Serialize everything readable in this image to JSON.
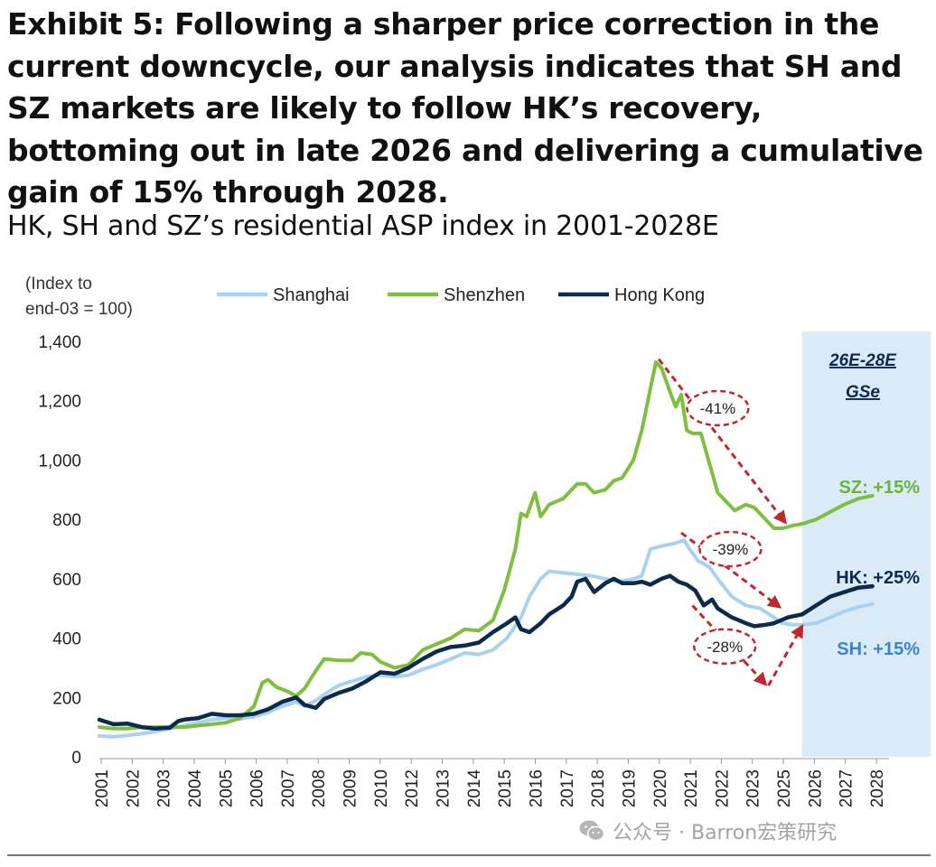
{
  "title": "Exhibit 5: Following a sharper price correction in the current downcycle, our analysis indicates that SH and SZ markets are likely to follow HK’s recovery, bottoming out in late 2026 and delivering a cumulative gain of 15% through 2028.",
  "subtitle": "HK, SH and SZ’s residential ASP index in 2001-2028E",
  "watermark": "公众号 · Barron宏策研究",
  "watermark_icon": "wechat-icon",
  "colors": {
    "shanghai": "#a9d2f0",
    "shenzhen": "#7fbf3f",
    "hongkong": "#0c2a4a",
    "forecast_band": "#dbeaf7",
    "annotation": "#c0282d",
    "sz_label": "#6ab23a",
    "sh_label": "#3a86cc"
  },
  "chart_data": {
    "type": "line",
    "ylabel": "(Index to end-03 = 100)",
    "ylim": [
      0,
      1400
    ],
    "yticks": [
      "0",
      "200",
      "400",
      "600",
      "800",
      "1,000",
      "1,200",
      "1,400"
    ],
    "xlim": [
      2001,
      2028.9
    ],
    "xtick_labels": [
      "2001",
      "2002",
      "2003",
      "2004",
      "2005",
      "2006",
      "2007",
      "2008",
      "2009",
      "2010",
      "2012",
      "2013",
      "2014",
      "2015",
      "2016",
      "2017",
      "2018",
      "2019",
      "2020",
      "2021",
      "2022",
      "2023",
      "2025",
      "2026",
      "2027",
      "2028"
    ],
    "grid": false,
    "legend_position": "top",
    "forecast_band": {
      "from": 2026.0,
      "to": 2029.3,
      "label_line1": "26E-28E",
      "label_line2": "GSe"
    },
    "series": [
      {
        "name": "Shanghai",
        "points": [
          [
            2001.0,
            70
          ],
          [
            2001.5,
            68
          ],
          [
            2002.0,
            72
          ],
          [
            2002.5,
            78
          ],
          [
            2003.0,
            85
          ],
          [
            2003.5,
            95
          ],
          [
            2004.0,
            105
          ],
          [
            2004.5,
            115
          ],
          [
            2005.0,
            125
          ],
          [
            2005.5,
            130
          ],
          [
            2006.0,
            128
          ],
          [
            2006.5,
            135
          ],
          [
            2007.0,
            150
          ],
          [
            2007.5,
            170
          ],
          [
            2008.0,
            185
          ],
          [
            2008.3,
            170
          ],
          [
            2008.7,
            190
          ],
          [
            2009.0,
            210
          ],
          [
            2009.5,
            240
          ],
          [
            2010.0,
            255
          ],
          [
            2010.5,
            270
          ],
          [
            2011.0,
            275
          ],
          [
            2011.5,
            270
          ],
          [
            2012.0,
            275
          ],
          [
            2012.5,
            295
          ],
          [
            2013.0,
            310
          ],
          [
            2013.5,
            330
          ],
          [
            2014.0,
            350
          ],
          [
            2014.5,
            345
          ],
          [
            2015.0,
            360
          ],
          [
            2015.5,
            400
          ],
          [
            2016.0,
            470
          ],
          [
            2016.3,
            540
          ],
          [
            2016.7,
            600
          ],
          [
            2017.0,
            625
          ],
          [
            2017.5,
            620
          ],
          [
            2018.0,
            615
          ],
          [
            2018.5,
            610
          ],
          [
            2019.0,
            600
          ],
          [
            2019.5,
            590
          ],
          [
            2020.0,
            600
          ],
          [
            2020.3,
            610
          ],
          [
            2020.6,
            700
          ],
          [
            2021.0,
            710
          ],
          [
            2021.5,
            720
          ],
          [
            2021.8,
            730
          ],
          [
            2022.0,
            700
          ],
          [
            2022.3,
            660
          ],
          [
            2022.7,
            640
          ],
          [
            2023.0,
            600
          ],
          [
            2023.5,
            540
          ],
          [
            2024.0,
            510
          ],
          [
            2024.5,
            500
          ],
          [
            2025.0,
            470
          ],
          [
            2025.3,
            450
          ],
          [
            2025.7,
            445
          ],
          [
            2026.0,
            445
          ],
          [
            2026.5,
            450
          ],
          [
            2027.0,
            470
          ],
          [
            2027.5,
            490
          ],
          [
            2028.0,
            505
          ],
          [
            2028.5,
            515
          ]
        ]
      },
      {
        "name": "Shenzhen",
        "points": [
          [
            2001.0,
            100
          ],
          [
            2001.5,
            95
          ],
          [
            2002.0,
            95
          ],
          [
            2002.5,
            100
          ],
          [
            2003.0,
            100
          ],
          [
            2003.5,
            100
          ],
          [
            2004.0,
            100
          ],
          [
            2004.5,
            105
          ],
          [
            2005.0,
            110
          ],
          [
            2005.5,
            115
          ],
          [
            2006.0,
            130
          ],
          [
            2006.5,
            170
          ],
          [
            2006.8,
            250
          ],
          [
            2007.0,
            260
          ],
          [
            2007.3,
            235
          ],
          [
            2007.7,
            220
          ],
          [
            2008.0,
            205
          ],
          [
            2008.3,
            230
          ],
          [
            2008.7,
            290
          ],
          [
            2009.0,
            330
          ],
          [
            2009.5,
            325
          ],
          [
            2010.0,
            325
          ],
          [
            2010.3,
            350
          ],
          [
            2010.7,
            345
          ],
          [
            2011.0,
            320
          ],
          [
            2011.5,
            300
          ],
          [
            2012.0,
            310
          ],
          [
            2012.5,
            360
          ],
          [
            2013.0,
            380
          ],
          [
            2013.5,
            400
          ],
          [
            2014.0,
            430
          ],
          [
            2014.5,
            425
          ],
          [
            2015.0,
            460
          ],
          [
            2015.4,
            560
          ],
          [
            2015.8,
            700
          ],
          [
            2016.0,
            820
          ],
          [
            2016.2,
            810
          ],
          [
            2016.5,
            890
          ],
          [
            2016.7,
            810
          ],
          [
            2017.0,
            850
          ],
          [
            2017.5,
            870
          ],
          [
            2017.8,
            900
          ],
          [
            2018.0,
            920
          ],
          [
            2018.3,
            920
          ],
          [
            2018.6,
            890
          ],
          [
            2019.0,
            900
          ],
          [
            2019.3,
            930
          ],
          [
            2019.6,
            940
          ],
          [
            2020.0,
            1000
          ],
          [
            2020.3,
            1100
          ],
          [
            2020.6,
            1240
          ],
          [
            2020.8,
            1330
          ],
          [
            2021.0,
            1310
          ],
          [
            2021.3,
            1230
          ],
          [
            2021.5,
            1180
          ],
          [
            2021.7,
            1220
          ],
          [
            2021.9,
            1100
          ],
          [
            2022.1,
            1090
          ],
          [
            2022.4,
            1090
          ],
          [
            2022.7,
            990
          ],
          [
            2023.0,
            890
          ],
          [
            2023.3,
            860
          ],
          [
            2023.6,
            830
          ],
          [
            2024.0,
            850
          ],
          [
            2024.3,
            840
          ],
          [
            2024.7,
            800
          ],
          [
            2025.0,
            770
          ],
          [
            2025.3,
            770
          ],
          [
            2025.7,
            780
          ],
          [
            2026.0,
            785
          ],
          [
            2026.5,
            800
          ],
          [
            2027.0,
            825
          ],
          [
            2027.5,
            850
          ],
          [
            2028.0,
            870
          ],
          [
            2028.5,
            880
          ]
        ]
      },
      {
        "name": "Hong Kong",
        "points": [
          [
            2001.0,
            125
          ],
          [
            2001.5,
            110
          ],
          [
            2002.0,
            112
          ],
          [
            2002.5,
            100
          ],
          [
            2003.0,
            95
          ],
          [
            2003.5,
            98
          ],
          [
            2003.8,
            120
          ],
          [
            2004.0,
            125
          ],
          [
            2004.5,
            130
          ],
          [
            2005.0,
            145
          ],
          [
            2005.5,
            140
          ],
          [
            2006.0,
            140
          ],
          [
            2006.5,
            145
          ],
          [
            2007.0,
            160
          ],
          [
            2007.5,
            185
          ],
          [
            2008.0,
            200
          ],
          [
            2008.3,
            175
          ],
          [
            2008.7,
            165
          ],
          [
            2009.0,
            195
          ],
          [
            2009.5,
            215
          ],
          [
            2010.0,
            230
          ],
          [
            2010.5,
            255
          ],
          [
            2011.0,
            285
          ],
          [
            2011.5,
            280
          ],
          [
            2012.0,
            300
          ],
          [
            2012.5,
            330
          ],
          [
            2013.0,
            355
          ],
          [
            2013.5,
            370
          ],
          [
            2014.0,
            375
          ],
          [
            2014.5,
            385
          ],
          [
            2015.0,
            420
          ],
          [
            2015.5,
            450
          ],
          [
            2015.8,
            470
          ],
          [
            2016.0,
            430
          ],
          [
            2016.3,
            420
          ],
          [
            2016.7,
            450
          ],
          [
            2017.0,
            480
          ],
          [
            2017.5,
            510
          ],
          [
            2017.8,
            540
          ],
          [
            2018.0,
            590
          ],
          [
            2018.3,
            600
          ],
          [
            2018.6,
            555
          ],
          [
            2019.0,
            585
          ],
          [
            2019.3,
            600
          ],
          [
            2019.6,
            585
          ],
          [
            2020.0,
            585
          ],
          [
            2020.3,
            590
          ],
          [
            2020.6,
            580
          ],
          [
            2021.0,
            600
          ],
          [
            2021.3,
            610
          ],
          [
            2021.6,
            590
          ],
          [
            2021.9,
            580
          ],
          [
            2022.2,
            560
          ],
          [
            2022.5,
            510
          ],
          [
            2022.8,
            530
          ],
          [
            2023.0,
            500
          ],
          [
            2023.5,
            470
          ],
          [
            2024.0,
            450
          ],
          [
            2024.3,
            440
          ],
          [
            2024.7,
            445
          ],
          [
            2025.0,
            450
          ],
          [
            2025.5,
            470
          ],
          [
            2026.0,
            480
          ],
          [
            2026.5,
            510
          ],
          [
            2027.0,
            540
          ],
          [
            2027.5,
            555
          ],
          [
            2028.0,
            570
          ],
          [
            2028.5,
            575
          ]
        ]
      }
    ],
    "annotations": [
      {
        "label": "-41%",
        "from": [
          2020.9,
          1340
        ],
        "to": [
          2025.4,
          790
        ],
        "ellipse": [
          2023.0,
          1175
        ]
      },
      {
        "label": "-39%",
        "from": [
          2021.7,
          755
        ],
        "to": [
          2025.2,
          505
        ],
        "ellipse": [
          2023.45,
          700
        ]
      },
      {
        "label": "-28%",
        "from": [
          2022.1,
          510
        ],
        "to": [
          2024.7,
          245
        ],
        "ellipse": [
          2023.25,
          372
        ]
      },
      {
        "label": "",
        "from": [
          2024.8,
          240
        ],
        "to": [
          2026.0,
          440
        ]
      }
    ],
    "end_labels": [
      {
        "text": "SZ: +15%",
        "series": "Shenzhen",
        "y": 910
      },
      {
        "text": "HK: +25%",
        "series": "Hong Kong",
        "y": 605
      },
      {
        "text": "SH: +15%",
        "series": "Shanghai",
        "y": 365
      }
    ]
  }
}
